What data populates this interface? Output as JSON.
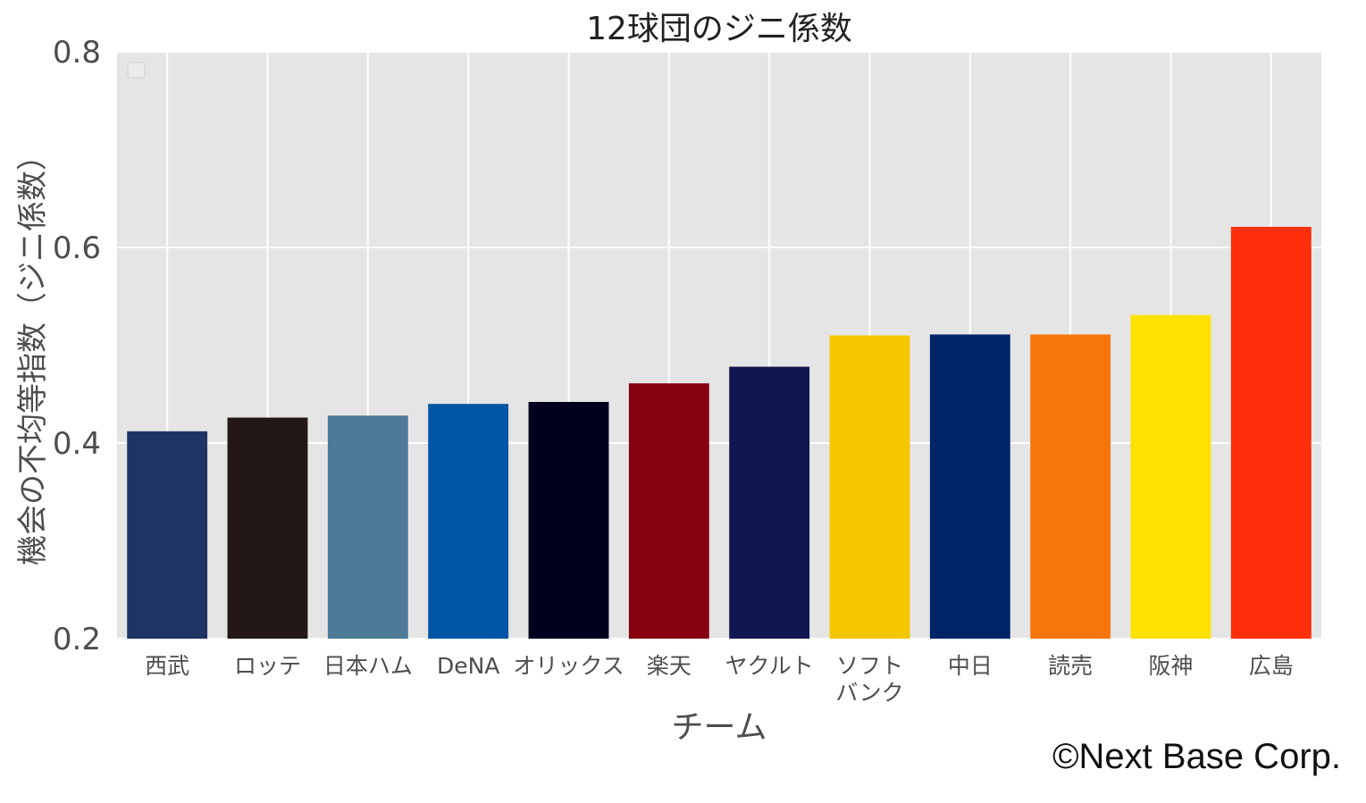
{
  "chart_data": {
    "type": "bar",
    "title": "12球団のジニ係数",
    "xlabel": "チーム",
    "ylabel": "機会の不均等指数（ジニ係数）",
    "ylim": [
      0.2,
      0.8
    ],
    "yticks": [
      "0.2",
      "0.4",
      "0.6",
      "0.8"
    ],
    "grid": true,
    "legend_box": "empty, top-left",
    "categories": [
      {
        "label": "西武",
        "lines": [
          "西武"
        ],
        "value": 0.412,
        "color": "#1f3364"
      },
      {
        "label": "ロッテ",
        "lines": [
          "ロッテ"
        ],
        "value": 0.426,
        "color": "#231816"
      },
      {
        "label": "日本ハム",
        "lines": [
          "日本ハム"
        ],
        "value": 0.428,
        "color": "#4d7a96"
      },
      {
        "label": "DeNA",
        "lines": [
          "DeNA"
        ],
        "value": 0.44,
        "color": "#0055a5"
      },
      {
        "label": "オリックス",
        "lines": [
          "オリックス"
        ],
        "value": 0.442,
        "color": "#00001e"
      },
      {
        "label": "楽天",
        "lines": [
          "楽天"
        ],
        "value": 0.461,
        "color": "#860010"
      },
      {
        "label": "ヤクルト",
        "lines": [
          "ヤクルト"
        ],
        "value": 0.478,
        "color": "#111551"
      },
      {
        "label": "ソフトバンク",
        "lines": [
          "ソフト",
          "バンク"
        ],
        "value": 0.51,
        "color": "#f4c700"
      },
      {
        "label": "中日",
        "lines": [
          "中日"
        ],
        "value": 0.511,
        "color": "#002569"
      },
      {
        "label": "読売",
        "lines": [
          "読売"
        ],
        "value": 0.511,
        "color": "#f6760e"
      },
      {
        "label": "阪神",
        "lines": [
          "阪神"
        ],
        "value": 0.531,
        "color": "#fde100"
      },
      {
        "label": "広島",
        "lines": [
          "広島"
        ],
        "value": 0.621,
        "color": "#ff2e0b"
      }
    ],
    "background_color": "#e5e5e5",
    "grid_color": "#ffffff"
  },
  "footer": {
    "copyright": "©Next Base Corp."
  }
}
